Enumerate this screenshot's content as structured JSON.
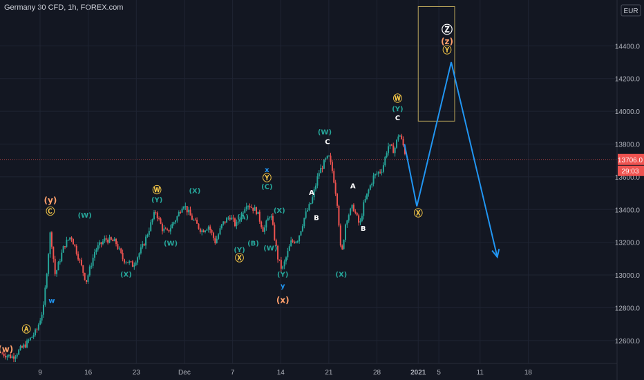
{
  "header": {
    "title": "Germany 30 CFD, 1h, FOREX.com"
  },
  "colors": {
    "background": "#131722",
    "grid": "#1f2433",
    "axis_text": "#b2b5be",
    "up": "#26a69a",
    "down": "#ef5350",
    "projection": "#2196f3",
    "box": "#b8a35a",
    "label_white": "#ffffff",
    "label_green": "#26a69a",
    "label_orange": "#ff9f6b",
    "label_yellow": "#f7c948",
    "label_blue": "#2196f3"
  },
  "chart_data": {
    "type": "candlestick",
    "title": "Germany 30 CFD, 1h, FOREX.com",
    "currency": "EUR",
    "ylim": [
      12460,
      14680
    ],
    "y_ticks": [
      12600,
      12800,
      13000,
      13200,
      13400,
      13600,
      13800,
      14000,
      14200,
      14400
    ],
    "x_ticks": [
      {
        "label": "9",
        "day": 9
      },
      {
        "label": "16",
        "day": 16
      },
      {
        "label": "23",
        "day": 23
      },
      {
        "label": "Dec",
        "day": 30
      },
      {
        "label": "7",
        "day": 37
      },
      {
        "label": "14",
        "day": 44
      },
      {
        "label": "21",
        "day": 51
      },
      {
        "label": "28",
        "day": 58
      },
      {
        "label": "2021",
        "day": 64
      },
      {
        "label": "5",
        "day": 67
      },
      {
        "label": "11",
        "day": 73
      },
      {
        "label": "18",
        "day": 80
      }
    ],
    "xlim_days": [
      3,
      86
    ],
    "last_price": "13706.0",
    "countdown": "29:03",
    "price_path": [
      [
        3.5,
        12520
      ],
      [
        5.0,
        12500
      ],
      [
        7.0,
        12580
      ],
      [
        8.5,
        12660
      ],
      [
        9.5,
        12800
      ],
      [
        10.5,
        13270
      ],
      [
        11.2,
        13000
      ],
      [
        12.5,
        13180
      ],
      [
        13.5,
        13240
      ],
      [
        14.5,
        13120
      ],
      [
        15.7,
        12960
      ],
      [
        17.0,
        13150
      ],
      [
        18.5,
        13220
      ],
      [
        20.0,
        13200
      ],
      [
        21.0,
        13100
      ],
      [
        22.5,
        13060
      ],
      [
        24.0,
        13180
      ],
      [
        25.0,
        13300
      ],
      [
        25.8,
        13390
      ],
      [
        26.8,
        13280
      ],
      [
        27.5,
        13260
      ],
      [
        29.0,
        13360
      ],
      [
        29.8,
        13440
      ],
      [
        31.0,
        13350
      ],
      [
        32.5,
        13270
      ],
      [
        33.5,
        13300
      ],
      [
        34.5,
        13200
      ],
      [
        35.5,
        13310
      ],
      [
        36.6,
        13360
      ],
      [
        37.5,
        13300
      ],
      [
        39.0,
        13440
      ],
      [
        40.5,
        13390
      ],
      [
        41.5,
        13270
      ],
      [
        42.5,
        13380
      ],
      [
        43.6,
        13100
      ],
      [
        44.2,
        13030
      ],
      [
        45.5,
        13200
      ],
      [
        46.5,
        13220
      ],
      [
        47.5,
        13360
      ],
      [
        48.5,
        13450
      ],
      [
        49.5,
        13620
      ],
      [
        50.5,
        13700
      ],
      [
        51.0,
        13720
      ],
      [
        51.6,
        13620
      ],
      [
        52.3,
        13420
      ],
      [
        52.8,
        13100
      ],
      [
        53.5,
        13340
      ],
      [
        54.5,
        13420
      ],
      [
        55.5,
        13300
      ],
      [
        56.0,
        13420
      ],
      [
        56.8,
        13520
      ],
      [
        57.5,
        13600
      ],
      [
        58.8,
        13650
      ],
      [
        59.6,
        13790
      ],
      [
        60.5,
        13760
      ],
      [
        61.2,
        13870
      ],
      [
        61.9,
        13780
      ],
      [
        62.3,
        13706
      ]
    ],
    "projection": [
      {
        "day": 62.0,
        "price": 13800,
        "label": "start"
      },
      {
        "day": 63.8,
        "price": 13420,
        "label": "X"
      },
      {
        "day": 68.8,
        "price": 14300,
        "label": "Y"
      },
      {
        "day": 75.5,
        "price": 13110,
        "label": "end"
      }
    ],
    "target_box": {
      "day_start": 64.0,
      "day_end": 69.3,
      "price_low": 13940,
      "price_high": 14640
    },
    "wave_labels": [
      {
        "text": "(w)",
        "day": 4.0,
        "price": 12530,
        "color": "orange"
      },
      {
        "text": "Ⓐ",
        "day": 7.0,
        "price": 12650,
        "color": "yellow"
      },
      {
        "text": "w",
        "day": 10.7,
        "price": 12830,
        "color": "blue"
      },
      {
        "text": "(y)",
        "day": 10.5,
        "price": 13440,
        "color": "orange"
      },
      {
        "text": "Ⓒ",
        "day": 10.5,
        "price": 13370,
        "color": "yellow"
      },
      {
        "text": "(W)",
        "day": 15.5,
        "price": 13350,
        "color": "green"
      },
      {
        "text": "(X)",
        "day": 21.5,
        "price": 12990,
        "color": "green"
      },
      {
        "text": "Ⓦ",
        "day": 26.0,
        "price": 13500,
        "color": "yellow"
      },
      {
        "text": "(Y)",
        "day": 26.0,
        "price": 13445,
        "color": "green"
      },
      {
        "text": "(W)",
        "day": 28.0,
        "price": 13180,
        "color": "green"
      },
      {
        "text": "(X)",
        "day": 31.5,
        "price": 13500,
        "color": "green"
      },
      {
        "text": "(A)",
        "day": 38.5,
        "price": 13340,
        "color": "green"
      },
      {
        "text": "(Y)",
        "day": 38.0,
        "price": 13140,
        "color": "green"
      },
      {
        "text": "Ⓧ",
        "day": 38.0,
        "price": 13085,
        "color": "yellow"
      },
      {
        "text": "(B)",
        "day": 40.0,
        "price": 13180,
        "color": "green"
      },
      {
        "text": "x",
        "day": 42.0,
        "price": 13630,
        "color": "blue"
      },
      {
        "text": "Ⓨ",
        "day": 42.0,
        "price": 13575,
        "color": "yellow"
      },
      {
        "text": "(C)",
        "day": 42.0,
        "price": 13525,
        "color": "green"
      },
      {
        "text": "(X)",
        "day": 43.8,
        "price": 13380,
        "color": "green"
      },
      {
        "text": "(W)",
        "day": 42.5,
        "price": 13150,
        "color": "green"
      },
      {
        "text": "(Y)",
        "day": 44.3,
        "price": 12990,
        "color": "green"
      },
      {
        "text": "y",
        "day": 44.3,
        "price": 12920,
        "color": "blue"
      },
      {
        "text": "(x)",
        "day": 44.3,
        "price": 12830,
        "color": "orange"
      },
      {
        "text": "A",
        "day": 48.5,
        "price": 13490,
        "color": "white"
      },
      {
        "text": "B",
        "day": 49.2,
        "price": 13335,
        "color": "white"
      },
      {
        "text": "(W)",
        "day": 50.4,
        "price": 13860,
        "color": "green"
      },
      {
        "text": "C",
        "day": 50.8,
        "price": 13800,
        "color": "white"
      },
      {
        "text": "(X)",
        "day": 52.8,
        "price": 12990,
        "color": "green"
      },
      {
        "text": "A",
        "day": 54.5,
        "price": 13530,
        "color": "white"
      },
      {
        "text": "B",
        "day": 56.0,
        "price": 13270,
        "color": "white"
      },
      {
        "text": "Ⓦ",
        "day": 61.0,
        "price": 14060,
        "color": "yellow"
      },
      {
        "text": "(Y)",
        "day": 61.0,
        "price": 14000,
        "color": "green"
      },
      {
        "text": "C",
        "day": 61.0,
        "price": 13945,
        "color": "white"
      },
      {
        "text": "Ⓧ",
        "day": 64.0,
        "price": 13360,
        "color": "yellow"
      },
      {
        "text": "Ⓩ",
        "day": 68.2,
        "price": 14475,
        "color": "white"
      },
      {
        "text": "(z)",
        "day": 68.2,
        "price": 14410,
        "color": "orange"
      },
      {
        "text": "Ⓨ",
        "day": 68.2,
        "price": 14355,
        "color": "yellow"
      }
    ]
  }
}
